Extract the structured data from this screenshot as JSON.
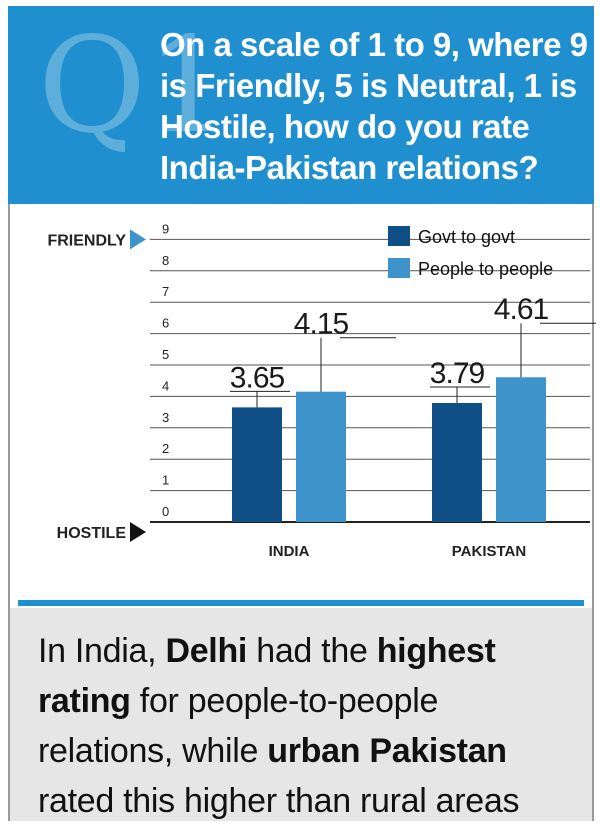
{
  "header": {
    "q_label": "Q1",
    "question": "On a scale of 1 to 9, where 9 is Friendly, 5 is Neutral, 1 is Hostile, how do you rate India-Pakistan relations?"
  },
  "chart_data": {
    "type": "bar",
    "categories": [
      "INDIA",
      "PAKISTAN"
    ],
    "series": [
      {
        "name": "Govt to govt",
        "values": [
          3.65,
          3.79
        ]
      },
      {
        "name": "People to people",
        "values": [
          4.15,
          4.61
        ]
      }
    ],
    "data_labels": [
      "3.65",
      "4.15",
      "3.79",
      "4.61"
    ],
    "ylim": [
      0,
      9
    ],
    "yticks": [
      "0",
      "1",
      "2",
      "3",
      "4",
      "5",
      "6",
      "7",
      "8",
      "9"
    ],
    "top_label": "FRIENDLY",
    "bottom_label": "HOSTILE",
    "colors": {
      "Govt to govt": "#0f4f86",
      "People to people": "#3f93cb"
    },
    "grid": true,
    "legend_position": "top-right"
  },
  "footer": {
    "parts": [
      {
        "text": "In India, ",
        "bold": false
      },
      {
        "text": "Delhi",
        "bold": true
      },
      {
        "text": " had the ",
        "bold": false
      },
      {
        "text": "highest rating",
        "bold": true
      },
      {
        "text": " for people-to-people relations, while ",
        "bold": false
      },
      {
        "text": "urban Pakistan",
        "bold": true
      },
      {
        "text": " rated this higher than rural areas",
        "bold": false
      }
    ]
  }
}
